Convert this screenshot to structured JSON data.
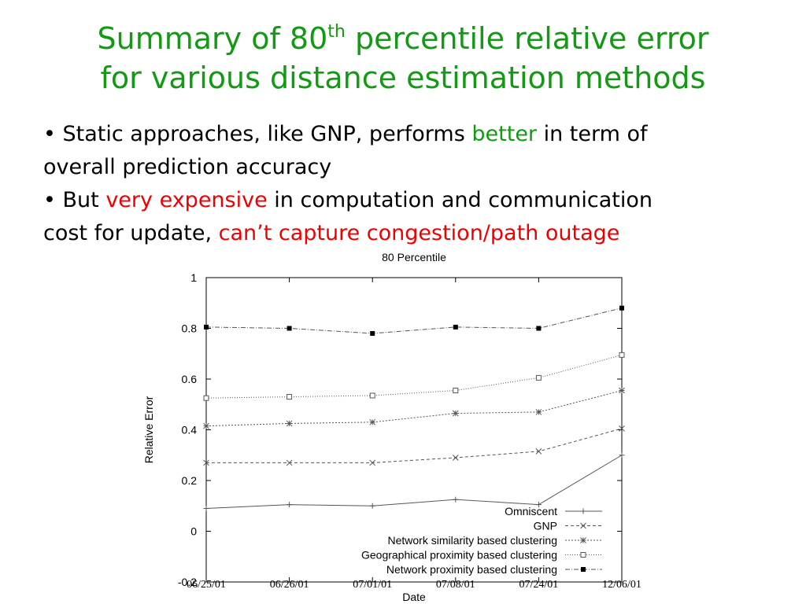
{
  "slide": {
    "title_line1_pre": "Summary of 80",
    "title_sup": "th",
    "title_line1_post": " percentile relative error",
    "title_line2": "for various distance estimation methods",
    "bullet1": {
      "prefix": "• Static approaches, like GNP, performs ",
      "highlight": "better",
      "suffix": " in term of",
      "line2": "overall prediction accuracy"
    },
    "bullet2": {
      "prefix": "• But ",
      "highlight1": "very expensive",
      "middle": " in computation and communication",
      "line2_prefix": "cost for update, ",
      "highlight2": "can’t capture congestion/path outage"
    }
  },
  "colors": {
    "title": "#129a12",
    "highlight_green": "#129a12",
    "highlight_red": "#ee0000",
    "series": "#555555"
  },
  "chart_data": {
    "type": "line",
    "title": "80 Percentile",
    "xlabel": "Date",
    "ylabel": "Relative Error",
    "categories": [
      "06/25/01",
      "06/26/01",
      "07/01/01",
      "07/08/01",
      "07/24/01",
      "12/06/01"
    ],
    "ylim": [
      -0.2,
      1
    ],
    "yticks": [
      "-0.2",
      "0",
      "0.2",
      "0.4",
      "0.6",
      "0.8",
      "1"
    ],
    "grid": false,
    "legend_position": "bottom-right",
    "series": [
      {
        "name": "Omniscent",
        "marker": "plus",
        "dash": "solid",
        "values": [
          0.09,
          0.105,
          0.1,
          0.125,
          0.105,
          0.3
        ]
      },
      {
        "name": "GNP",
        "marker": "x",
        "dash": "dashed",
        "values": [
          0.27,
          0.27,
          0.27,
          0.29,
          0.315,
          0.405
        ]
      },
      {
        "name": "Network similarity based clustering",
        "marker": "star",
        "dash": "dotted",
        "values": [
          0.415,
          0.425,
          0.43,
          0.465,
          0.47,
          0.555
        ]
      },
      {
        "name": "Geographical proximity based clustering",
        "marker": "square-open",
        "dash": "dotted-fine",
        "values": [
          0.525,
          0.53,
          0.535,
          0.555,
          0.605,
          0.695
        ]
      },
      {
        "name": "Network proximity based clustering",
        "marker": "square-filled",
        "dash": "dashdot",
        "values": [
          0.805,
          0.8,
          0.78,
          0.805,
          0.8,
          0.88
        ]
      }
    ]
  }
}
